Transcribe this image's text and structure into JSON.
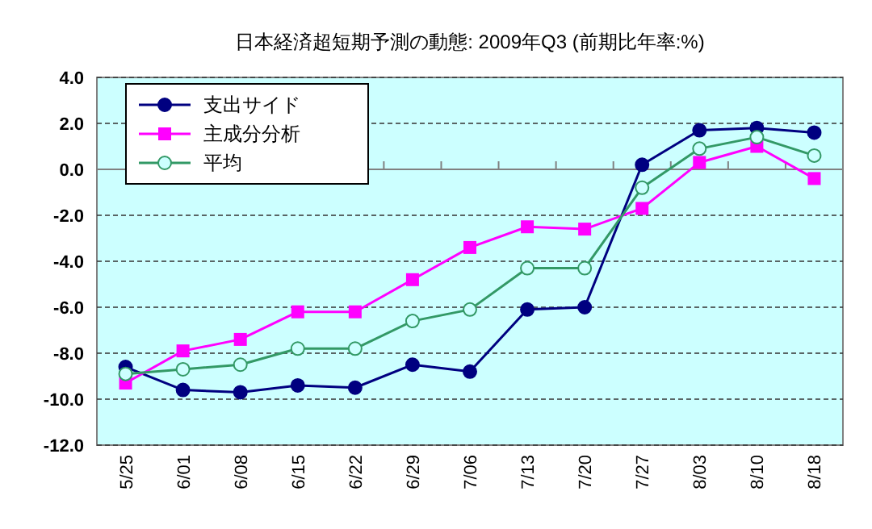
{
  "chart_data": {
    "type": "line",
    "title": "日本経済超短期予測の動態: 2009年Q3 (前期比年率:%)",
    "categories": [
      "5/25",
      "6/01",
      "6/08",
      "6/15",
      "6/22",
      "6/29",
      "7/06",
      "7/13",
      "7/20",
      "7/27",
      "8/03",
      "8/10",
      "8/18"
    ],
    "series": [
      {
        "name": "支出サイド",
        "color": "#000080",
        "marker": "circle",
        "values": [
          -8.6,
          -9.6,
          -9.7,
          -9.4,
          -9.5,
          -8.5,
          -8.8,
          -6.1,
          -6.0,
          0.2,
          1.7,
          1.8,
          1.6
        ]
      },
      {
        "name": "主成分分析",
        "color": "#ff00ff",
        "marker": "square",
        "values": [
          -9.3,
          -7.9,
          -7.4,
          -6.2,
          -6.2,
          -4.8,
          -3.4,
          -2.5,
          -2.6,
          -1.7,
          0.3,
          1.0,
          -0.4
        ]
      },
      {
        "name": "平均",
        "color": "#339966",
        "marker": "circle",
        "values": [
          -8.9,
          -8.7,
          -8.5,
          -7.8,
          -7.8,
          -6.6,
          -6.1,
          -4.3,
          -4.3,
          -0.8,
          0.9,
          1.4,
          0.6
        ]
      }
    ],
    "ylim": [
      -12,
      4
    ],
    "yticks": [
      {
        "value": 4,
        "label": "4.0"
      },
      {
        "value": 2,
        "label": "2.0"
      },
      {
        "value": 0,
        "label": "0.0"
      },
      {
        "value": -2,
        "label": "-2.0"
      },
      {
        "value": -4,
        "label": "-4.0"
      },
      {
        "value": -6,
        "label": "-6.0"
      },
      {
        "value": -8,
        "label": "-8.0"
      },
      {
        "value": -10,
        "label": "-10.0"
      },
      {
        "value": -12,
        "label": "-12.0"
      }
    ],
    "grid": "y",
    "legend": "top left"
  }
}
